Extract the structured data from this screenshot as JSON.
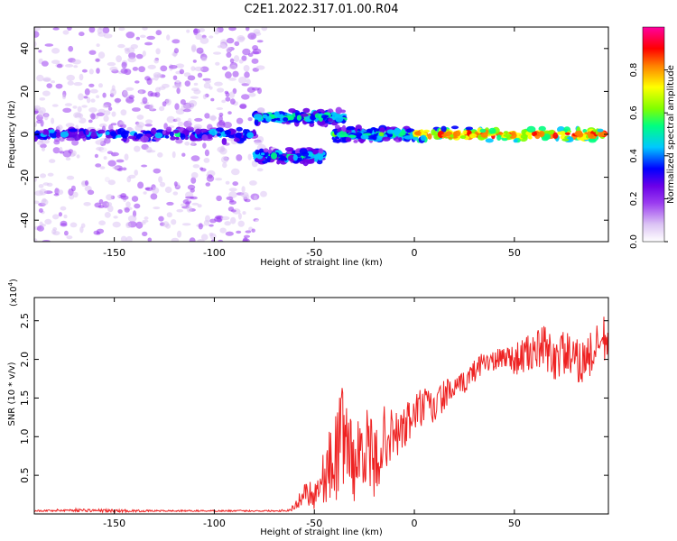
{
  "title": "C2E1.2022.317.01.00.R04",
  "chart_data": [
    {
      "type": "heatmap",
      "xlabel": "Height of straight line (km)",
      "ylabel": "Frequency (Hz)",
      "xlim": [
        -190,
        97
      ],
      "ylim": [
        -50,
        50
      ],
      "x_ticks": [
        -150,
        -100,
        -50,
        0,
        50
      ],
      "y_ticks": [
        40,
        20,
        0,
        -20,
        -40
      ],
      "colorbar": {
        "label": "Normalized spectral amplitude",
        "range": [
          0.0,
          1.0
        ],
        "ticks": [
          "0.0",
          "0.2",
          "0.4",
          "0.6",
          "0.8"
        ],
        "colormap": [
          "#ffffff",
          "#dcc4f4",
          "#9b3cf0",
          "#6a00e8",
          "#0000ff",
          "#00c8ff",
          "#00ff80",
          "#80ff00",
          "#ffff00",
          "#ff8000",
          "#ff0000",
          "#ff00a0"
        ]
      },
      "features": [
        {
          "x_range": [
            -190,
            -75
          ],
          "freq_range": [
            -50,
            50
          ],
          "amplitude": 0.1,
          "description": "diffuse noise"
        },
        {
          "x_range": [
            -190,
            -80
          ],
          "freq_center": 0,
          "amplitude": 0.4
        },
        {
          "x_range": [
            -80,
            -35
          ],
          "freq_center": 8,
          "amplitude": 0.5
        },
        {
          "x_range": [
            -80,
            -45
          ],
          "freq_center": -10,
          "amplitude": 0.45
        },
        {
          "x_range": [
            -40,
            0
          ],
          "freq_center": 0,
          "amplitude": 0.5
        },
        {
          "x_range": [
            0,
            95
          ],
          "freq_center": 0,
          "amplitude": 0.85
        }
      ]
    },
    {
      "type": "line",
      "xlabel": "Height of straight line (km)",
      "ylabel": "SNR (10 * v/v)",
      "ylabel_exponent": "(x10",
      "exponent_power": "4",
      "exponent_close": ")",
      "xlim": [
        -190,
        97
      ],
      "ylim": [
        0,
        2.8
      ],
      "x_ticks": [
        -150,
        -100,
        -50,
        0,
        50
      ],
      "y_ticks": [
        0.5,
        1.0,
        1.5,
        2.0,
        2.5
      ],
      "line_color": "#ee2222",
      "series": [
        {
          "x": [
            -190,
            -170,
            -150,
            -130,
            -110,
            -90,
            -70,
            -62,
            -58,
            -55,
            -50,
            -45,
            -40,
            -35,
            -30,
            -25,
            -20,
            -15,
            -10,
            -5,
            0,
            5,
            10,
            15,
            20,
            25,
            30,
            35,
            40,
            45,
            50,
            55,
            60,
            65,
            70,
            75,
            80,
            85,
            90,
            95
          ],
          "y": [
            0.04,
            0.05,
            0.04,
            0.04,
            0.04,
            0.04,
            0.04,
            0.05,
            0.15,
            0.3,
            0.25,
            0.5,
            0.7,
            1.1,
            0.6,
            0.95,
            0.6,
            1.0,
            1.0,
            1.1,
            1.3,
            1.4,
            1.35,
            1.55,
            1.6,
            1.7,
            1.85,
            2.0,
            1.95,
            2.05,
            2.0,
            2.05,
            2.1,
            2.15,
            2.0,
            2.1,
            1.95,
            2.0,
            2.1,
            2.25
          ],
          "noise_amplitude": [
            0.01,
            0.02,
            0.02,
            0.01,
            0.01,
            0.01,
            0.01,
            0.02,
            0.08,
            0.15,
            0.2,
            0.35,
            0.6,
            0.7,
            0.45,
            0.55,
            0.5,
            0.4,
            0.35,
            0.3,
            0.3,
            0.25,
            0.25,
            0.2,
            0.15,
            0.15,
            0.15,
            0.15,
            0.15,
            0.15,
            0.2,
            0.25,
            0.25,
            0.3,
            0.3,
            0.3,
            0.3,
            0.3,
            0.3,
            0.35
          ]
        }
      ]
    }
  ]
}
